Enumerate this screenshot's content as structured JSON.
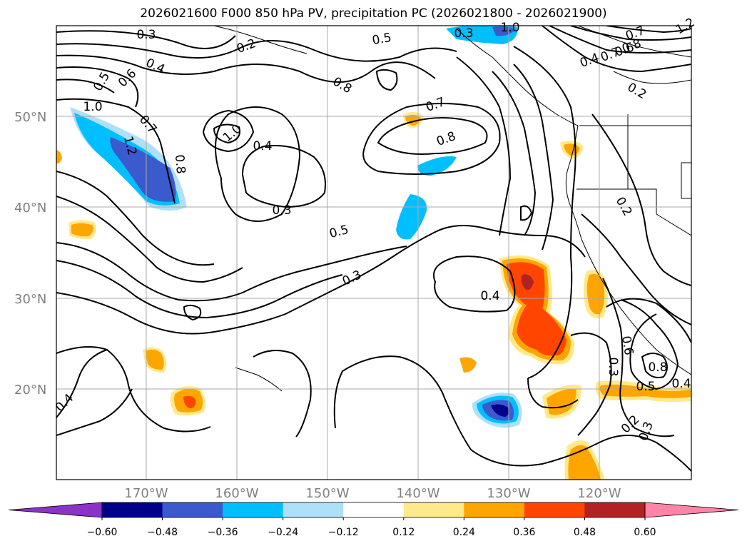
{
  "title": "2026021600 F000 850 hPa PV, precipitation PC (2026021800 - 2026021900)",
  "lat_labels": [
    "50°N",
    "40°N",
    "30°N",
    "20°N"
  ],
  "lon_labels": [
    "170°W",
    "160°W",
    "150°W",
    "140°W",
    "130°W",
    "120°W"
  ],
  "colorbar": {
    "ticks": [
      "−0.60",
      "−0.48",
      "−0.36",
      "−0.24",
      "−0.12",
      "0.12",
      "0.24",
      "0.36",
      "0.48",
      "0.60"
    ],
    "colors": [
      "#8b32c8",
      "#00008b",
      "#3a5acd",
      "#00bfff",
      "#aee0fa",
      "#ffffff",
      "#ffe98a",
      "#ffa500",
      "#ff4500",
      "#b22222",
      "#ff85a8"
    ]
  },
  "contour_labels": [
    "0.3",
    "0.2",
    "0.4",
    "0.3",
    "1.0",
    "1.2",
    "0.5",
    "0.8",
    "0.5",
    "0.6",
    "0.7",
    "0.6",
    "0.4",
    "0.7",
    "0.8",
    "0.2",
    "1.0",
    "0.7",
    "1.2",
    "1.0",
    "0.8",
    "0.4",
    "0.8",
    "0.7",
    "0.3",
    "0.5",
    "0.3",
    "0.4",
    "0.2",
    "0.6",
    "0.3",
    "0.8",
    "0.5",
    "0.4",
    "0.2",
    "0.3",
    "0.4"
  ]
}
